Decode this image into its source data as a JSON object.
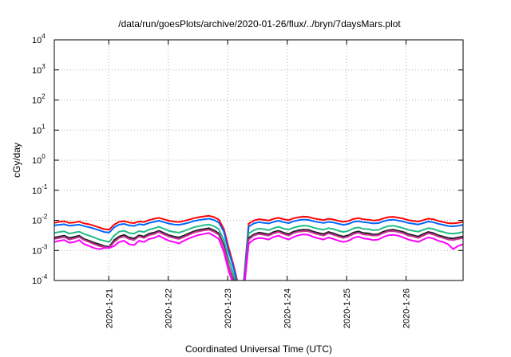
{
  "chart_data": {
    "type": "line",
    "title": "/data/run/goesPlots/archive/2020-01-26/flux/../bryn/7daysMars.plot",
    "xlabel": "Coordinated Universal Time (UTC)",
    "ylabel": "cGy/day",
    "y_scale": "log",
    "ylim": [
      0.0001,
      10000
    ],
    "xlim": [
      "2020-01-20T02:00",
      "2020-01-26T23:00"
    ],
    "y_ticks": [
      {
        "value": 0.0001,
        "base": "10",
        "exp": "-4"
      },
      {
        "value": 0.001,
        "base": "10",
        "exp": "-3"
      },
      {
        "value": 0.01,
        "base": "10",
        "exp": "-2"
      },
      {
        "value": 0.1,
        "base": "10",
        "exp": "-1"
      },
      {
        "value": 1,
        "base": "10",
        "exp": "0"
      },
      {
        "value": 10,
        "base": "10",
        "exp": "1"
      },
      {
        "value": 100,
        "base": "10",
        "exp": "2"
      },
      {
        "value": 1000,
        "base": "10",
        "exp": "3"
      },
      {
        "value": 10000,
        "base": "10",
        "exp": "4"
      }
    ],
    "x_ticks": [
      "2020-1-21",
      "2020-1-22",
      "2020-1-23",
      "2020-1-24",
      "2020-1-25",
      "2020-1-26"
    ],
    "grid": true,
    "series": [
      {
        "color": "#ff0000",
        "values": [
          0.0083,
          0.0089,
          0.0093,
          0.0082,
          0.0085,
          0.0091,
          0.0079,
          0.0074,
          0.0066,
          0.0058,
          0.0051,
          0.0049,
          0.0072,
          0.0089,
          0.0094,
          0.0085,
          0.0081,
          0.0092,
          0.0088,
          0.0102,
          0.0112,
          0.0121,
          0.0108,
          0.0097,
          0.0091,
          0.0088,
          0.0095,
          0.0105,
          0.0118,
          0.0127,
          0.0135,
          0.0142,
          0.0129,
          0.0106,
          0.0052,
          0.0012,
          0.0003,
          6e-05,
          9e-05,
          0.0078,
          0.0098,
          0.0109,
          0.0104,
          0.0098,
          0.0112,
          0.0121,
          0.0109,
          0.0101,
          0.0117,
          0.0126,
          0.0133,
          0.0129,
          0.0116,
          0.0109,
          0.0102,
          0.0112,
          0.0106,
          0.0096,
          0.0089,
          0.0095,
          0.0111,
          0.0118,
          0.0109,
          0.0105,
          0.0099,
          0.0101,
          0.0116,
          0.0128,
          0.0131,
          0.0123,
          0.0114,
          0.0102,
          0.0096,
          0.0091,
          0.0101,
          0.0114,
          0.0109,
          0.0096,
          0.0088,
          0.0081,
          0.0079,
          0.0083,
          0.0089
        ]
      },
      {
        "color": "#0066ff",
        "values": [
          0.0068,
          0.0071,
          0.0074,
          0.0066,
          0.0069,
          0.0072,
          0.0064,
          0.0059,
          0.0053,
          0.0047,
          0.0041,
          0.0039,
          0.0058,
          0.0072,
          0.0076,
          0.0068,
          0.0065,
          0.0074,
          0.0071,
          0.0082,
          0.0089,
          0.0097,
          0.0087,
          0.0078,
          0.0073,
          0.0071,
          0.0076,
          0.0084,
          0.0095,
          0.0102,
          0.0108,
          0.0114,
          0.0103,
          0.0085,
          0.0042,
          0.0009,
          0.00025,
          5e-05,
          8e-05,
          0.0062,
          0.0079,
          0.0087,
          0.0083,
          0.0079,
          0.0089,
          0.0097,
          0.0087,
          0.0081,
          0.0093,
          0.0101,
          0.0106,
          0.0103,
          0.0093,
          0.0087,
          0.0082,
          0.0089,
          0.0085,
          0.0077,
          0.0071,
          0.0076,
          0.0089,
          0.0094,
          0.0087,
          0.0084,
          0.0079,
          0.0081,
          0.0093,
          0.0102,
          0.0105,
          0.0098,
          0.0091,
          0.0082,
          0.0077,
          0.0073,
          0.0081,
          0.0091,
          0.0087,
          0.0077,
          0.0071,
          0.0065,
          0.0063,
          0.0066,
          0.0071
        ]
      },
      {
        "color": "#22bb88",
        "values": [
          0.0038,
          0.0041,
          0.0043,
          0.0036,
          0.0039,
          0.0042,
          0.0035,
          0.0031,
          0.0027,
          0.0023,
          0.0021,
          0.0019,
          0.0031,
          0.0042,
          0.0045,
          0.0038,
          0.0036,
          0.0044,
          0.0041,
          0.0049,
          0.0054,
          0.0061,
          0.0052,
          0.0045,
          0.0041,
          0.0039,
          0.0044,
          0.0051,
          0.0059,
          0.0064,
          0.0069,
          0.0073,
          0.0064,
          0.0051,
          0.0022,
          0.0005,
          0.00015,
          3e-05,
          6e-05,
          0.0036,
          0.0047,
          0.0053,
          0.0051,
          0.0047,
          0.0055,
          0.0061,
          0.0053,
          0.0049,
          0.0057,
          0.0063,
          0.0067,
          0.0065,
          0.0057,
          0.0052,
          0.0049,
          0.0055,
          0.0051,
          0.0045,
          0.0041,
          0.0045,
          0.0054,
          0.0058,
          0.0052,
          0.0051,
          0.0047,
          0.0048,
          0.0057,
          0.0064,
          0.0066,
          0.0061,
          0.0055,
          0.0048,
          0.0045,
          0.0042,
          0.0048,
          0.0055,
          0.0052,
          0.0045,
          0.0041,
          0.0037,
          0.0036,
          0.0038,
          0.0041
        ]
      },
      {
        "color": "#222222",
        "values": [
          0.0027,
          0.0029,
          0.0031,
          0.0026,
          0.0028,
          0.0031,
          0.0024,
          0.0021,
          0.0018,
          0.0016,
          0.0014,
          0.0013,
          0.0022,
          0.0029,
          0.0033,
          0.0027,
          0.0025,
          0.0032,
          0.0029,
          0.0036,
          0.0039,
          0.0045,
          0.0038,
          0.0032,
          0.0029,
          0.0027,
          0.0031,
          0.0037,
          0.0043,
          0.0048,
          0.0051,
          0.0055,
          0.0047,
          0.0037,
          0.0015,
          0.0003,
          0.0001,
          2e-05,
          5e-05,
          0.0026,
          0.0034,
          0.0039,
          0.0037,
          0.0034,
          0.0041,
          0.0045,
          0.0039,
          0.0035,
          0.0042,
          0.0047,
          0.0049,
          0.0048,
          0.0042,
          0.0038,
          0.0035,
          0.0041,
          0.0037,
          0.0032,
          0.0029,
          0.0032,
          0.0039,
          0.0043,
          0.0038,
          0.0037,
          0.0034,
          0.0035,
          0.0042,
          0.0047,
          0.0049,
          0.0045,
          0.0041,
          0.0035,
          0.0032,
          0.0029,
          0.0035,
          0.0041,
          0.0038,
          0.0032,
          0.0029,
          0.0026,
          0.0025,
          0.0027,
          0.0029
        ]
      },
      {
        "color": "#cc3399",
        "values": [
          0.0024,
          0.0026,
          0.0028,
          0.0023,
          0.0025,
          0.0028,
          0.0022,
          0.0019,
          0.0016,
          0.0014,
          0.0013,
          0.0012,
          0.0019,
          0.0026,
          0.0029,
          0.0024,
          0.0022,
          0.0029,
          0.0026,
          0.0032,
          0.0035,
          0.0041,
          0.0034,
          0.0029,
          0.0026,
          0.0024,
          0.0028,
          0.0033,
          0.0039,
          0.0043,
          0.0046,
          0.0049,
          0.0042,
          0.0033,
          0.0013,
          0.0003,
          9e-05,
          2e-05,
          5e-05,
          0.0023,
          0.0031,
          0.0035,
          0.0033,
          0.0031,
          0.0037,
          0.0041,
          0.0035,
          0.0031,
          0.0038,
          0.0042,
          0.0044,
          0.0043,
          0.0038,
          0.0034,
          0.0031,
          0.0037,
          0.0033,
          0.0029,
          0.0026,
          0.0029,
          0.0035,
          0.0039,
          0.0034,
          0.0033,
          0.0031,
          0.0032,
          0.0038,
          0.0043,
          0.0044,
          0.0041,
          0.0037,
          0.0031,
          0.0029,
          0.0026,
          0.0031,
          0.0037,
          0.0034,
          0.0029,
          0.0026,
          0.0023,
          0.0022,
          0.0024,
          0.0026
        ]
      },
      {
        "color": "#ff00ff",
        "values": [
          0.0019,
          0.0021,
          0.0022,
          0.0018,
          0.0019,
          0.0022,
          0.0016,
          0.0014,
          0.0012,
          0.0011,
          0.0012,
          0.0012,
          0.0014,
          0.0019,
          0.0021,
          0.0016,
          0.0015,
          0.0021,
          0.0019,
          0.0024,
          0.0026,
          0.0031,
          0.0025,
          0.0021,
          0.0019,
          0.0017,
          0.0021,
          0.0025,
          0.0029,
          0.0033,
          0.0035,
          0.0038,
          0.0031,
          0.0024,
          0.0009,
          0.0002,
          7e-05,
          2e-05,
          4e-05,
          0.0017,
          0.0023,
          0.0026,
          0.0025,
          0.0023,
          0.0028,
          0.0031,
          0.0026,
          0.0023,
          0.0028,
          0.0032,
          0.0034,
          0.0033,
          0.0028,
          0.0025,
          0.0023,
          0.0027,
          0.0024,
          0.0021,
          0.0019,
          0.0021,
          0.0026,
          0.0029,
          0.0025,
          0.0024,
          0.0022,
          0.0023,
          0.0028,
          0.0032,
          0.0033,
          0.0031,
          0.0027,
          0.0023,
          0.0021,
          0.0019,
          0.0023,
          0.0027,
          0.0025,
          0.0021,
          0.0019,
          0.0016,
          0.0011,
          0.0014,
          0.0016
        ]
      }
    ]
  }
}
